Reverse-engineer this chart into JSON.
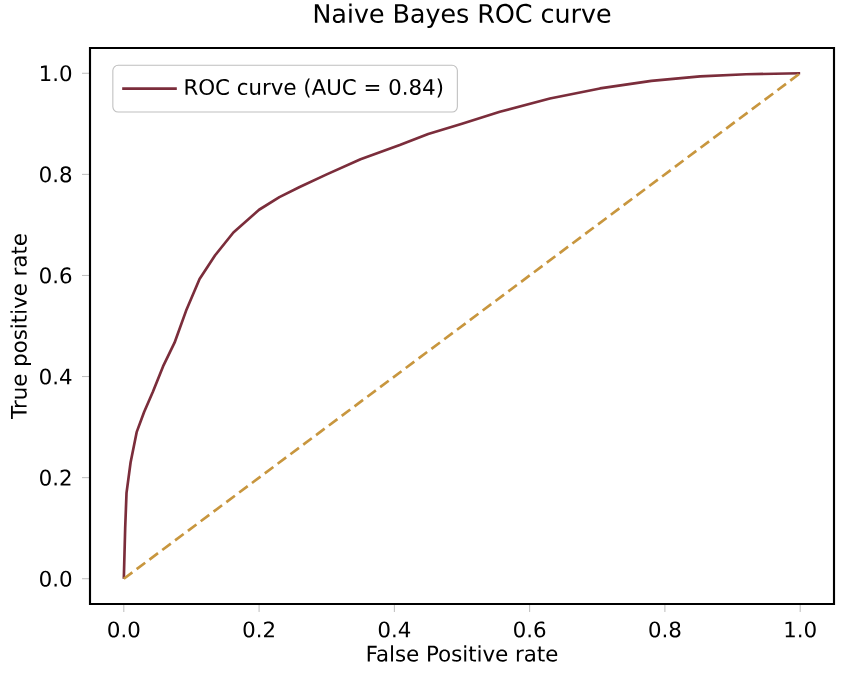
{
  "chart_data": {
    "type": "line",
    "title": "Naive Bayes ROC curve",
    "xlabel": "False Positive rate",
    "ylabel": "True positive rate",
    "xlim": [
      -0.05,
      1.05
    ],
    "ylim": [
      -0.05,
      1.05
    ],
    "xticks": [
      {
        "value": 0,
        "label": "0.0"
      },
      {
        "value": 0.2,
        "label": "0.2"
      },
      {
        "value": 0.4,
        "label": "0.4"
      },
      {
        "value": 0.6,
        "label": "0.6"
      },
      {
        "value": 0.8,
        "label": "0.8"
      },
      {
        "value": 1,
        "label": "1.0"
      }
    ],
    "yticks": [
      {
        "value": 0,
        "label": "0.0"
      },
      {
        "value": 0.2,
        "label": "0.2"
      },
      {
        "value": 0.4,
        "label": "0.4"
      },
      {
        "value": 0.6,
        "label": "0.6"
      },
      {
        "value": 0.8,
        "label": "0.8"
      },
      {
        "value": 1,
        "label": "1.0"
      }
    ],
    "legend": "top left",
    "grid": false,
    "series": [
      {
        "name": "ROC curve (AUC = 0.84)",
        "color": "#7b2d3b",
        "line_style": "solid",
        "x": [
          0,
          0.002,
          0.004,
          0.01,
          0.019,
          0.03,
          0.043,
          0.058,
          0.075,
          0.092,
          0.112,
          0.135,
          0.162,
          0.2,
          0.23,
          0.26,
          0.3,
          0.35,
          0.408,
          0.45,
          0.5,
          0.556,
          0.63,
          0.704,
          0.78,
          0.852,
          0.92,
          1
        ],
        "values": [
          0,
          0.1,
          0.17,
          0.23,
          0.29,
          0.33,
          0.37,
          0.42,
          0.467,
          0.53,
          0.593,
          0.64,
          0.685,
          0.73,
          0.755,
          0.775,
          0.8,
          0.83,
          0.858,
          0.88,
          0.9,
          0.924,
          0.95,
          0.97,
          0.985,
          0.994,
          0.998,
          1
        ]
      },
      {
        "color": "#c8963e",
        "line_style": "dashed",
        "x": [
          0,
          1
        ],
        "values": [
          0,
          1
        ]
      }
    ]
  }
}
